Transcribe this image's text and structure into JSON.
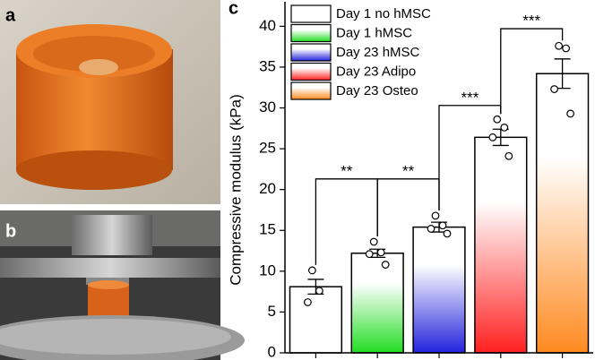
{
  "panel_labels": [
    "a",
    "b",
    "c"
  ],
  "chart_data": {
    "type": "bar",
    "ylabel": "Compressive modulus (kPa)",
    "categories": [
      null,
      null,
      null,
      null,
      null
    ],
    "ylim": [
      0,
      43
    ],
    "yticks": [
      0,
      5,
      10,
      15,
      20,
      25,
      30,
      35,
      40
    ],
    "legend": "upper left",
    "series": [
      {
        "name": "Day 1 no hMSC",
        "color": "#ffffff",
        "values": [
          8.1,
          null,
          null,
          null,
          null
        ],
        "errors": [
          0.9,
          null,
          null,
          null,
          null
        ],
        "points": [
          [
            10.1,
            7.6,
            6.2
          ],
          null,
          null,
          null,
          null
        ]
      },
      {
        "name": "Day 1 hMSC",
        "color": "#22dd22",
        "values": [
          null,
          12.2,
          null,
          null,
          null
        ],
        "errors": [
          null,
          0.5,
          null,
          null,
          null
        ],
        "points": [
          null,
          [
            13.6,
            12.3,
            12.1,
            10.8
          ],
          null,
          null,
          null
        ]
      },
      {
        "name": "Day 23 hMSC",
        "color": "#2222dd",
        "values": [
          null,
          null,
          15.4,
          null,
          null
        ],
        "errors": [
          null,
          null,
          0.6,
          null,
          null
        ],
        "points": [
          null,
          null,
          [
            16.8,
            15.6,
            15.2,
            14.6
          ],
          null,
          null
        ]
      },
      {
        "name": "Day 23 Adipo",
        "color": "#ff2020",
        "values": [
          null,
          null,
          null,
          26.4,
          null
        ],
        "errors": [
          null,
          null,
          null,
          1.0,
          null
        ],
        "points": [
          null,
          null,
          null,
          [
            28.6,
            27.6,
            26.4,
            24.1
          ],
          null
        ]
      },
      {
        "name": "Day 23 Osteo",
        "color": "#ff8a20",
        "values": [
          null,
          null,
          null,
          null,
          34.2
        ],
        "errors": [
          null,
          null,
          null,
          null,
          1.8
        ],
        "points": [
          null,
          null,
          null,
          null,
          [
            37.6,
            37.3,
            32.3,
            29.3
          ]
        ]
      }
    ],
    "annotations": [
      {
        "text": "**",
        "from": 0,
        "to": 1,
        "y": 21.3
      },
      {
        "text": "**",
        "from": 1,
        "to": 2,
        "y": 21.3
      },
      {
        "text": "***",
        "from": 2,
        "to": 3,
        "y": 30.3
      },
      {
        "text": "***",
        "from": 3,
        "to": 4,
        "y": 39.7
      }
    ]
  }
}
